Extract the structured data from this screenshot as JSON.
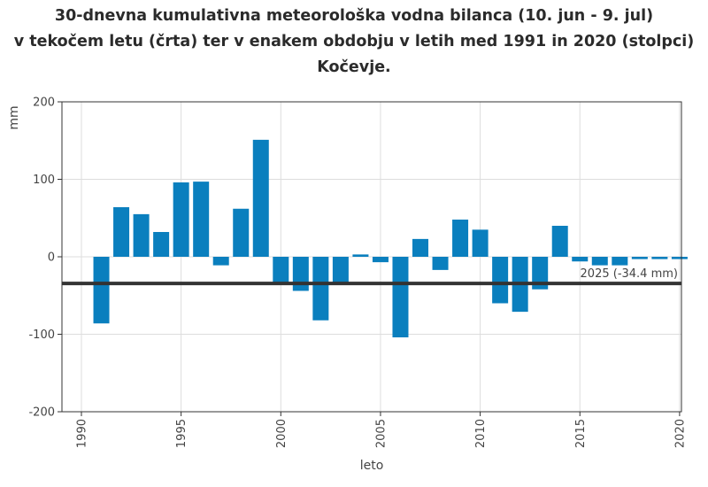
{
  "chart_data": {
    "type": "bar",
    "title_lines": [
      "30-dnevna kumulativna meteorološka vodna bilanca (10. jun - 9. jul)",
      "v tekočem letu (črta) ter v enakem obdobju v letih med 1991 in 2020 (stolpci)",
      "Kočevje."
    ],
    "xlabel": "leto",
    "ylabel": "mm",
    "xlim": [
      1990,
      2020
    ],
    "ylim": [
      -200,
      200
    ],
    "x_ticks": [
      "1990",
      "1995",
      "2000",
      "2005",
      "2010",
      "2015",
      "2020"
    ],
    "y_ticks": [
      "200",
      "100",
      "0",
      "-100",
      "-200"
    ],
    "grid": true,
    "bar_color": "#0a7fbe",
    "line_color": "#333333",
    "x": [
      1991,
      1992,
      1993,
      1994,
      1995,
      1996,
      1997,
      1998,
      1999,
      2000,
      2001,
      2002,
      2003,
      2004,
      2005,
      2006,
      2007,
      2008,
      2009,
      2010,
      2011,
      2012,
      2013,
      2014,
      2015,
      2016,
      2017,
      2018,
      2019,
      2020
    ],
    "values": [
      -86,
      64,
      55,
      32,
      96,
      97,
      -11,
      62,
      151,
      -33,
      -44,
      -82,
      -33,
      3,
      -7,
      -104,
      23,
      -17,
      48,
      35,
      -60,
      -71,
      -42,
      40,
      -6,
      -11,
      -11,
      -3,
      -3,
      -3
    ],
    "reference_line": {
      "value": -34.4,
      "label": "2025 (-34.4 mm)"
    }
  }
}
